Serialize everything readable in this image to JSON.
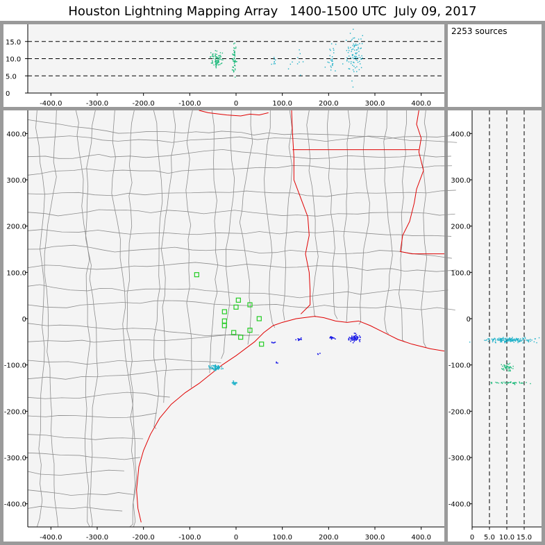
{
  "title": "Houston Lightning Mapping Array   1400-1500 UTC  July 09, 2017",
  "sources_label": "2253 sources",
  "colors": {
    "frame": "#9a9a9a",
    "panel": "#f4f4f4",
    "county": "#8c8c8c",
    "border": "#e00000",
    "station": "#22cc22",
    "src_blue": "#1a1ae6",
    "src_teal": "#1bb0c8",
    "src_green": "#18b878"
  },
  "chart_data": [
    {
      "name": "plan-view",
      "type": "scatter",
      "xlim": [
        -450,
        450
      ],
      "ylim": [
        -450,
        450
      ],
      "xticks": [
        "-400.0",
        "-300.0",
        "-200.0",
        "-100.0",
        "0",
        "100.0",
        "200.0",
        "300.0",
        "400.0"
      ],
      "yticks": [
        "400.0",
        "300.0",
        "200.0",
        "100.0",
        "0",
        "-100.0",
        "-200.0",
        "-300.0",
        "-400.0"
      ],
      "stations": [
        [
          -85,
          95
        ],
        [
          -25,
          15
        ],
        [
          5,
          40
        ],
        [
          30,
          30
        ],
        [
          50,
          0
        ],
        [
          0,
          25
        ],
        [
          -25,
          -15
        ],
        [
          -5,
          -30
        ],
        [
          10,
          -40
        ],
        [
          30,
          -25
        ],
        [
          55,
          -55
        ],
        [
          -25,
          -5
        ]
      ],
      "clusters": [
        {
          "x": -45,
          "y": -105,
          "n": 60,
          "sd": 5,
          "color": "teal"
        },
        {
          "x": -5,
          "y": -138,
          "n": 20,
          "sd": 3,
          "color": "teal"
        },
        {
          "x": 255,
          "y": -42,
          "n": 60,
          "sd": 7,
          "color": "blue"
        },
        {
          "x": 205,
          "y": -40,
          "n": 14,
          "sd": 3,
          "color": "blue"
        },
        {
          "x": 135,
          "y": -45,
          "n": 10,
          "sd": 4,
          "color": "blue"
        },
        {
          "x": 80,
          "y": -50,
          "n": 5,
          "sd": 3,
          "color": "blue"
        },
        {
          "x": 90,
          "y": -95,
          "n": 3,
          "sd": 2,
          "color": "blue"
        },
        {
          "x": 175,
          "y": -75,
          "n": 3,
          "sd": 2,
          "color": "blue"
        }
      ]
    },
    {
      "name": "longitude-height",
      "type": "scatter",
      "xlim": [
        -450,
        450
      ],
      "ylim": [
        0,
        20
      ],
      "xticks": [
        "-400.0",
        "-300.0",
        "-200.0",
        "-100.0",
        "0",
        "100.0",
        "200.0",
        "300.0",
        "400.0"
      ],
      "yticks": [
        "15.0",
        "10.0",
        "5.0",
        "0"
      ],
      "dashed_levels": [
        5,
        10,
        15
      ],
      "clusters": [
        {
          "x": -45,
          "z": 10,
          "sx": 6,
          "sz": 1.2,
          "n": 80,
          "color": "green"
        },
        {
          "x": -5,
          "z": 10,
          "sx": 2,
          "sz": 2.5,
          "n": 50,
          "color": "green"
        },
        {
          "x": 85,
          "z": 9.5,
          "sx": 5,
          "sz": 1.0,
          "n": 8,
          "color": "teal"
        },
        {
          "x": 130,
          "z": 9.5,
          "sx": 6,
          "sz": 1.5,
          "n": 10,
          "color": "teal"
        },
        {
          "x": 205,
          "z": 11,
          "sx": 4,
          "sz": 3,
          "n": 25,
          "color": "teal"
        },
        {
          "x": 255,
          "z": 11.5,
          "sx": 9,
          "sz": 3.5,
          "n": 90,
          "color": "teal"
        }
      ]
    },
    {
      "name": "height-latitude",
      "type": "scatter",
      "xlim": [
        0,
        20
      ],
      "ylim": [
        -450,
        450
      ],
      "xticks": [
        "0",
        "5.0",
        "10.0",
        "15.0"
      ],
      "yticks": [
        "400.0",
        "300.0",
        "200.0",
        "100.0",
        "0",
        "-100.0",
        "-200.0",
        "-300.0",
        "-400.0"
      ],
      "dashed_levels": [
        5,
        10,
        15
      ],
      "clusters": [
        {
          "z": 10.5,
          "y": -45,
          "sz": 3.5,
          "sy": 2.5,
          "n": 160,
          "color": "teal"
        },
        {
          "z": 10,
          "y": -105,
          "sz": 1.2,
          "sy": 4,
          "n": 40,
          "color": "green"
        },
        {
          "z": 10.5,
          "y": -138,
          "sz": 2.5,
          "sy": 1.5,
          "n": 40,
          "color": "green"
        }
      ]
    }
  ]
}
